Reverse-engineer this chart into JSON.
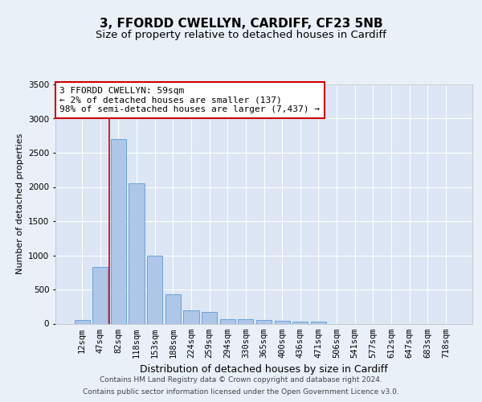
{
  "title": "3, FFORDD CWELLYN, CARDIFF, CF23 5NB",
  "subtitle": "Size of property relative to detached houses in Cardiff",
  "xlabel": "Distribution of detached houses by size in Cardiff",
  "ylabel": "Number of detached properties",
  "categories": [
    "12sqm",
    "47sqm",
    "82sqm",
    "118sqm",
    "153sqm",
    "188sqm",
    "224sqm",
    "259sqm",
    "294sqm",
    "330sqm",
    "365sqm",
    "400sqm",
    "436sqm",
    "471sqm",
    "506sqm",
    "541sqm",
    "577sqm",
    "612sqm",
    "647sqm",
    "683sqm",
    "718sqm"
  ],
  "values": [
    50,
    830,
    2700,
    2050,
    1000,
    430,
    200,
    175,
    70,
    60,
    50,
    40,
    30,
    30,
    0,
    0,
    0,
    0,
    0,
    0,
    0
  ],
  "bar_color": "#aec6e8",
  "bar_edge_color": "#5b9bd5",
  "bg_color": "#eaf0f8",
  "plot_bg_color": "#dce6f5",
  "grid_color": "#ffffff",
  "annotation_box_text": "3 FFORDD CWELLYN: 59sqm\n← 2% of detached houses are smaller (137)\n98% of semi-detached houses are larger (7,437) →",
  "annotation_box_color": "#ffffff",
  "annotation_box_edge_color": "#cc0000",
  "footer_line1": "Contains HM Land Registry data © Crown copyright and database right 2024.",
  "footer_line2": "Contains public sector information licensed under the Open Government Licence v3.0.",
  "ylim": [
    0,
    3500
  ],
  "yticks": [
    0,
    500,
    1000,
    1500,
    2000,
    2500,
    3000,
    3500
  ],
  "title_fontsize": 11,
  "subtitle_fontsize": 9.5,
  "xlabel_fontsize": 9,
  "ylabel_fontsize": 8,
  "tick_fontsize": 7.5,
  "footer_fontsize": 6.5,
  "annotation_fontsize": 8,
  "red_line_color": "#cc0000",
  "red_line_x": 1.5
}
